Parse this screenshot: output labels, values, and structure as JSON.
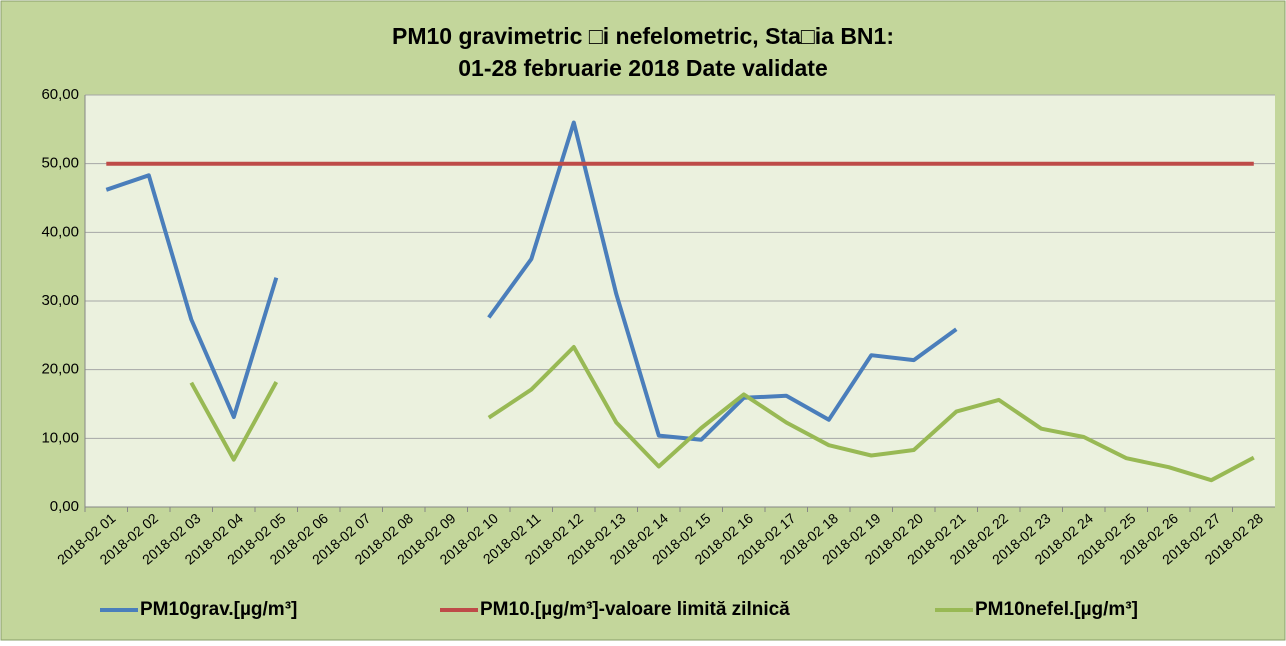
{
  "chart_data": {
    "type": "line",
    "title": [
      "PM10 gravimetric □i nefelometric, Sta□ia BN1:",
      "01-28 februarie 2018 Date validate"
    ],
    "categories": [
      "2018-02 01",
      "2018-02 02",
      "2018-02 03",
      "2018-02 04",
      "2018-02 05",
      "2018-02 06",
      "2018-02 07",
      "2018-02 08",
      "2018-02 09",
      "2018-02 10",
      "2018-02 11",
      "2018-02 12",
      "2018-02 13",
      "2018-02 14",
      "2018-02 15",
      "2018-02 16",
      "2018-02 17",
      "2018-02 18",
      "2018-02 19",
      "2018-02 20",
      "2018-02 21",
      "2018-02 22",
      "2018-02 23",
      "2018-02 24",
      "2018-02 25",
      "2018-02 26",
      "2018-02 27",
      "2018-02 28"
    ],
    "series": [
      {
        "name": "PM10grav.[µg/m³]",
        "color": "#4a7ebb",
        "values": [
          46.2,
          48.3,
          27.3,
          13.1,
          33.4,
          null,
          null,
          null,
          null,
          27.6,
          36.1,
          56.0,
          31.0,
          10.4,
          9.8,
          15.9,
          16.2,
          12.7,
          22.1,
          21.4,
          25.9,
          null,
          null,
          null,
          null,
          null,
          null,
          null
        ]
      },
      {
        "name": "PM10.[µg/m³]-valoare limită zilnică",
        "color": "#be4b48",
        "values": [
          50,
          50,
          50,
          50,
          50,
          50,
          50,
          50,
          50,
          50,
          50,
          50,
          50,
          50,
          50,
          50,
          50,
          50,
          50,
          50,
          50,
          50,
          50,
          50,
          50,
          50,
          50,
          50
        ]
      },
      {
        "name": "PM10nefel.[µg/m³]",
        "color": "#98b954",
        "values": [
          null,
          null,
          18.1,
          6.9,
          18.2,
          null,
          null,
          null,
          null,
          13.0,
          17.1,
          23.3,
          12.3,
          5.9,
          11.5,
          16.4,
          12.3,
          9.0,
          7.5,
          8.3,
          13.9,
          15.6,
          11.4,
          10.2,
          7.1,
          5.8,
          3.9,
          7.2
        ]
      }
    ],
    "ylim": [
      0,
      60
    ],
    "yticks": [
      {
        "value": 0,
        "label": "0,00"
      },
      {
        "value": 10,
        "label": "10,00"
      },
      {
        "value": 20,
        "label": "20,00"
      },
      {
        "value": 30,
        "label": "30,00"
      },
      {
        "value": 40,
        "label": "40,00"
      },
      {
        "value": 50,
        "label": "50,00"
      },
      {
        "value": 60,
        "label": "60,00"
      }
    ],
    "grid": true,
    "legend": "bottom"
  }
}
